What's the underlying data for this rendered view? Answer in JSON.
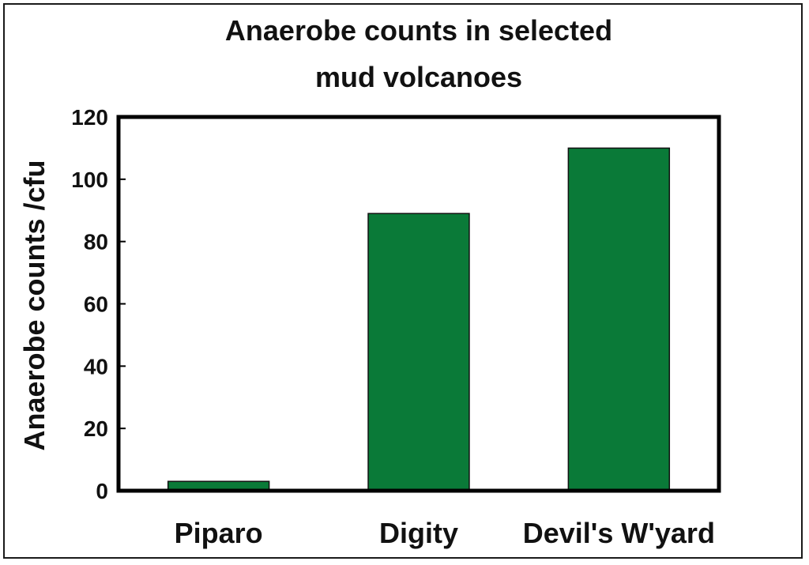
{
  "chart_data": {
    "type": "bar",
    "title_lines": [
      "Anaerobe counts in selected",
      "mud volcanoes"
    ],
    "xlabel": "",
    "ylabel": "Anaerobe counts /cfu",
    "categories": [
      "Piparo",
      "Digity",
      "Devil's W'yard"
    ],
    "values": [
      3,
      89,
      110
    ],
    "ylim": [
      0,
      120
    ],
    "yticks": [
      0,
      20,
      40,
      60,
      80,
      100,
      120
    ],
    "grid": false,
    "legend": "none",
    "bar_color": "#0a7a38"
  }
}
